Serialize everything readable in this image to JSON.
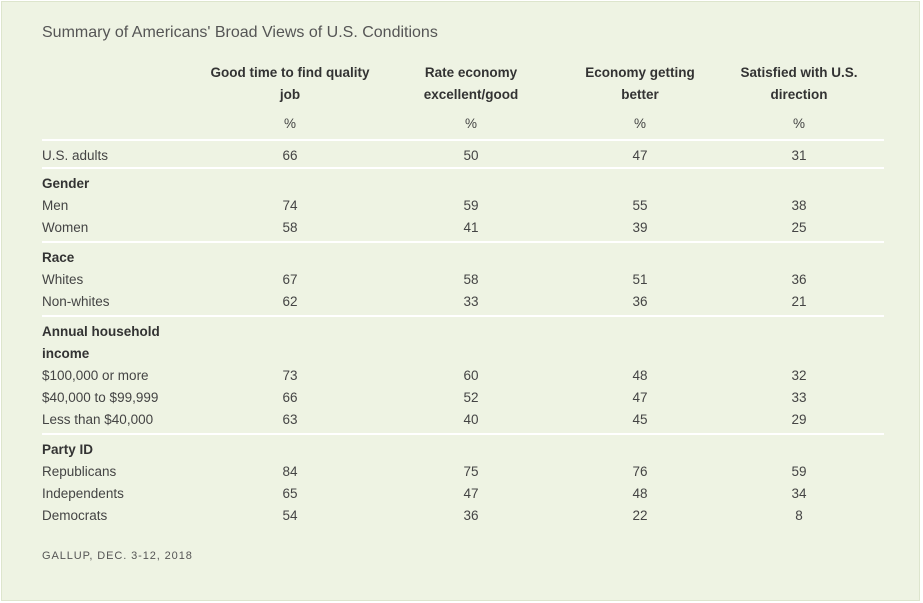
{
  "title": "Summary of Americans' Broad Views of U.S. Conditions",
  "source": "GALLUP, DEC. 3-12, 2018",
  "chart_data": {
    "type": "table",
    "title": "Summary of Americans' Broad Views of U.S. Conditions",
    "columns": [
      "Good time to find quality job",
      "Rate economy excellent/good",
      "Economy getting better",
      "Satisfied with U.S. direction"
    ],
    "units": [
      "%",
      "%",
      "%",
      "%"
    ],
    "overall": {
      "label": "U.S. adults",
      "values": [
        "66",
        "50",
        "47",
        "31"
      ]
    },
    "groups": [
      {
        "name": "Gender",
        "rows": [
          {
            "label": "Men",
            "values": [
              "74",
              "59",
              "55",
              "38"
            ]
          },
          {
            "label": "Women",
            "values": [
              "58",
              "41",
              "39",
              "25"
            ]
          }
        ]
      },
      {
        "name": "Race",
        "rows": [
          {
            "label": "Whites",
            "values": [
              "67",
              "58",
              "51",
              "36"
            ]
          },
          {
            "label": "Non-whites",
            "values": [
              "62",
              "33",
              "36",
              "21"
            ]
          }
        ]
      },
      {
        "name": "Annual household income",
        "rows": [
          {
            "label": "$100,000 or more",
            "values": [
              "73",
              "60",
              "48",
              "32"
            ]
          },
          {
            "label": "$40,000 to $99,999",
            "values": [
              "66",
              "52",
              "47",
              "33"
            ]
          },
          {
            "label": "Less than $40,000",
            "values": [
              "63",
              "40",
              "45",
              "29"
            ]
          }
        ]
      },
      {
        "name": "Party ID",
        "rows": [
          {
            "label": "Republicans",
            "values": [
              "84",
              "75",
              "76",
              "59"
            ]
          },
          {
            "label": "Independents",
            "values": [
              "65",
              "47",
              "48",
              "34"
            ]
          },
          {
            "label": "Democrats",
            "values": [
              "54",
              "36",
              "22",
              "8"
            ]
          }
        ]
      }
    ]
  }
}
